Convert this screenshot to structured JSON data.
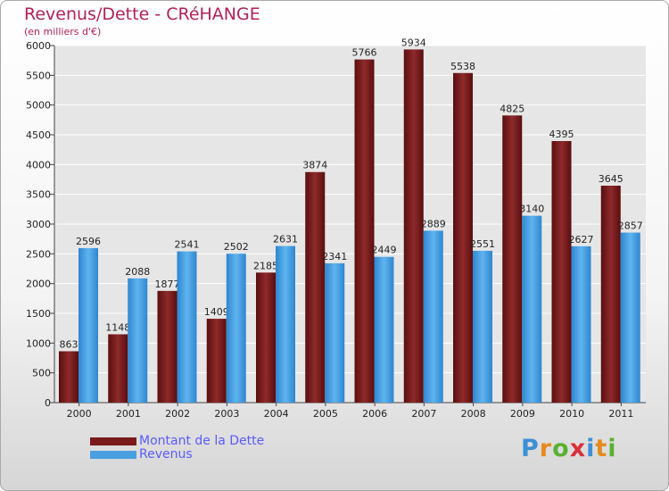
{
  "chart_data": {
    "type": "bar",
    "title": "Revenus/Dette - CRéHANGE",
    "subtitle": "(en milliers d'€)",
    "categories": [
      "2000",
      "2001",
      "2002",
      "2003",
      "2004",
      "2005",
      "2006",
      "2007",
      "2008",
      "2009",
      "2010",
      "2011"
    ],
    "series": [
      {
        "name": "Montant de la Dette",
        "color": "#7a1a1a",
        "values": [
          863,
          1148,
          1877,
          1409,
          2185,
          3874,
          5766,
          5934,
          5538,
          4825,
          4395,
          3645
        ]
      },
      {
        "name": "Revenus",
        "color": "#4a9fe0",
        "values": [
          2596,
          2088,
          2541,
          2502,
          2631,
          2341,
          2449,
          2889,
          2551,
          3140,
          2627,
          2857
        ]
      }
    ],
    "ylim": [
      0,
      6000
    ],
    "yticks": [
      0,
      500,
      1000,
      1500,
      2000,
      2500,
      3000,
      3500,
      4000,
      4500,
      5000,
      5500,
      6000
    ],
    "grid": true,
    "legend_position": "bottom-left"
  },
  "logo": {
    "letters": [
      {
        "ch": "P",
        "color": "#3d8fd6"
      },
      {
        "ch": "r",
        "color": "#e68a1e"
      },
      {
        "ch": "o",
        "color": "#5ab031"
      },
      {
        "ch": "x",
        "color": "#d9303a"
      },
      {
        "ch": "i",
        "color": "#3d8fd6"
      },
      {
        "ch": "t",
        "color": "#e68a1e"
      },
      {
        "ch": "i",
        "color": "#5ab031"
      }
    ]
  }
}
